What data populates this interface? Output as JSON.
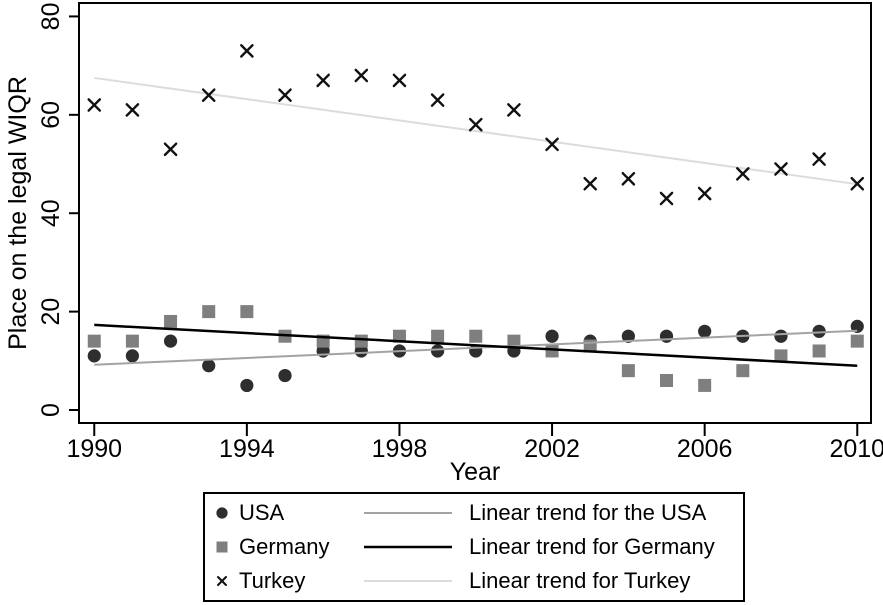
{
  "chart_data": {
    "type": "scatter",
    "title": "",
    "xlabel": "Year",
    "ylabel": "Place on the legal WIQR",
    "x_ticks": [
      "1990",
      "1994",
      "1998",
      "2002",
      "2006",
      "2010"
    ],
    "y_ticks": [
      "0",
      "20",
      "40",
      "60",
      "80"
    ],
    "xlim": [
      1989.6,
      2010.36
    ],
    "ylim": [
      -2.64,
      82.73
    ],
    "grid": false,
    "legend_position": "bottom",
    "x": [
      1990,
      1991,
      1992,
      1993,
      1994,
      1995,
      1996,
      1997,
      1998,
      1999,
      2000,
      2001,
      2002,
      2003,
      2004,
      2005,
      2006,
      2007,
      2008,
      2009,
      2010
    ],
    "series": [
      {
        "name": "USA",
        "marker": "circle",
        "color": "#2e2e2e",
        "values": [
          11,
          11,
          14,
          9,
          5,
          7,
          12,
          12,
          12,
          12,
          12,
          12,
          15,
          14,
          15,
          15,
          16,
          15,
          15,
          16,
          17
        ]
      },
      {
        "name": "Germany",
        "marker": "square",
        "color": "#7f7f7f",
        "values": [
          14,
          14,
          18,
          20,
          20,
          15,
          14,
          14,
          15,
          15,
          15,
          14,
          12,
          13,
          8,
          6,
          5,
          8,
          11,
          12,
          14
        ]
      },
      {
        "name": "Turkey",
        "marker": "x",
        "color": "#111111",
        "values": [
          62,
          61,
          53,
          64,
          73,
          64,
          67,
          68,
          67,
          63,
          58,
          61,
          54,
          46,
          47,
          43,
          44,
          48,
          49,
          51,
          46
        ]
      }
    ],
    "trends": [
      {
        "name": "Linear trend for the USA",
        "color": "#a3a3a3",
        "width": 2,
        "x": [
          1990,
          2010
        ],
        "y": [
          9.2,
          16.1
        ]
      },
      {
        "name": "Linear trend for Germany",
        "color": "#000000",
        "width": 2.5,
        "x": [
          1990,
          2010
        ],
        "y": [
          17.3,
          9.0
        ]
      },
      {
        "name": "Linear trend for Turkey",
        "color": "#dcdcdc",
        "width": 2,
        "x": [
          1990,
          2010
        ],
        "y": [
          67.5,
          45.9
        ]
      }
    ],
    "axis_color": "#000000",
    "tick_label_color": "#000000"
  }
}
